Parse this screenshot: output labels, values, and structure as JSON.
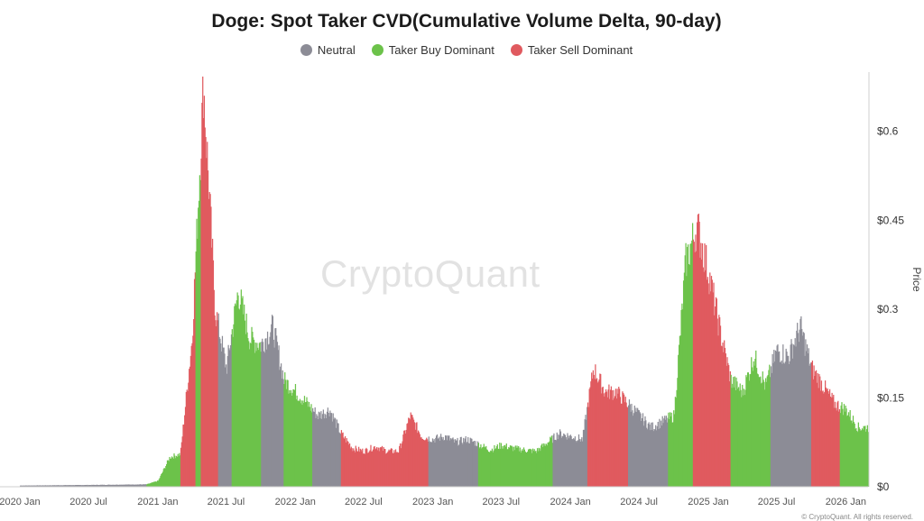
{
  "chart_data": {
    "type": "bar",
    "title": "Doge: Spot Taker CVD(Cumulative Volume Delta, 90-day)",
    "ylabel": "Price",
    "ylim": [
      0,
      0.7
    ],
    "yticks": [
      "$0",
      "$0.15",
      "$0.3",
      "$0.45",
      "$0.6"
    ],
    "ytick_values": [
      0,
      0.15,
      0.3,
      0.45,
      0.6
    ],
    "x_start": "2020-01",
    "x_end": "2026-03",
    "xtick_labels": [
      "2020 Jan",
      "2020 Jul",
      "2021 Jan",
      "2021 Jul",
      "2022 Jan",
      "2022 Jul",
      "2023 Jan",
      "2023 Jul",
      "2024 Jan",
      "2024 Jul",
      "2025 Jan",
      "2025 Jul",
      "2026 Jan"
    ],
    "xtick_dates": [
      "2020-01",
      "2020-07",
      "2021-01",
      "2021-07",
      "2022-01",
      "2022-07",
      "2023-01",
      "2023-07",
      "2024-01",
      "2024-07",
      "2025-01",
      "2025-07",
      "2026-01"
    ],
    "legend": [
      {
        "name": "Neutral",
        "color": "#8c8c96"
      },
      {
        "name": "Taker Buy Dominant",
        "color": "#6cc24a"
      },
      {
        "name": "Taker Sell Dominant",
        "color": "#e05a5f"
      }
    ],
    "legend_position": "top-center",
    "grid": false,
    "colors": {
      "neutral": "#8c8c96",
      "buy": "#6cc24a",
      "sell": "#e05a5f"
    },
    "price_points": [
      [
        "2020-01",
        0.002
      ],
      [
        "2020-07",
        0.003
      ],
      [
        "2020-12",
        0.004
      ],
      [
        "2021-01",
        0.01
      ],
      [
        "2021-02",
        0.05
      ],
      [
        "2021-03",
        0.055
      ],
      [
        "2021-04",
        0.25
      ],
      [
        "2021-05",
        0.68
      ],
      [
        "2021-05-20",
        0.45
      ],
      [
        "2021-06",
        0.3
      ],
      [
        "2021-07",
        0.2
      ],
      [
        "2021-08",
        0.33
      ],
      [
        "2021-09",
        0.25
      ],
      [
        "2021-10",
        0.24
      ],
      [
        "2021-11",
        0.27
      ],
      [
        "2021-12",
        0.18
      ],
      [
        "2022-01",
        0.16
      ],
      [
        "2022-02",
        0.14
      ],
      [
        "2022-03",
        0.12
      ],
      [
        "2022-04",
        0.13
      ],
      [
        "2022-05",
        0.09
      ],
      [
        "2022-06",
        0.065
      ],
      [
        "2022-07",
        0.06
      ],
      [
        "2022-08",
        0.068
      ],
      [
        "2022-09",
        0.06
      ],
      [
        "2022-10",
        0.06
      ],
      [
        "2022-11",
        0.12
      ],
      [
        "2022-12",
        0.085
      ],
      [
        "2023-01",
        0.08
      ],
      [
        "2023-02",
        0.085
      ],
      [
        "2023-03",
        0.075
      ],
      [
        "2023-04",
        0.08
      ],
      [
        "2023-05",
        0.072
      ],
      [
        "2023-06",
        0.062
      ],
      [
        "2023-07",
        0.07
      ],
      [
        "2023-08",
        0.065
      ],
      [
        "2023-09",
        0.062
      ],
      [
        "2023-10",
        0.06
      ],
      [
        "2023-11",
        0.075
      ],
      [
        "2023-12",
        0.09
      ],
      [
        "2024-01",
        0.085
      ],
      [
        "2024-02",
        0.08
      ],
      [
        "2024-03",
        0.2
      ],
      [
        "2024-04",
        0.16
      ],
      [
        "2024-05",
        0.16
      ],
      [
        "2024-06",
        0.14
      ],
      [
        "2024-07",
        0.12
      ],
      [
        "2024-08",
        0.1
      ],
      [
        "2024-09",
        0.11
      ],
      [
        "2024-10",
        0.12
      ],
      [
        "2024-11",
        0.38
      ],
      [
        "2024-12",
        0.44
      ],
      [
        "2025-01",
        0.36
      ],
      [
        "2025-02",
        0.26
      ],
      [
        "2025-03",
        0.18
      ],
      [
        "2025-04",
        0.16
      ],
      [
        "2025-05",
        0.22
      ],
      [
        "2025-06",
        0.17
      ],
      [
        "2025-07",
        0.23
      ],
      [
        "2025-08",
        0.22
      ],
      [
        "2025-09",
        0.27
      ],
      [
        "2025-10",
        0.2
      ],
      [
        "2025-11",
        0.17
      ],
      [
        "2025-12",
        0.14
      ],
      [
        "2026-01",
        0.13
      ],
      [
        "2026-02",
        0.1
      ]
    ],
    "regimes": [
      {
        "start": "2020-01",
        "end": "2020-12",
        "state": "neutral"
      },
      {
        "start": "2020-12",
        "end": "2021-01",
        "state": "buy"
      },
      {
        "start": "2021-01",
        "end": "2021-03-01",
        "state": "buy"
      },
      {
        "start": "2021-03-01",
        "end": "2021-04-10",
        "state": "sell"
      },
      {
        "start": "2021-04-10",
        "end": "2021-04-25",
        "state": "buy"
      },
      {
        "start": "2021-04-25",
        "end": "2021-06-10",
        "state": "sell"
      },
      {
        "start": "2021-06-10",
        "end": "2021-07-15",
        "state": "neutral"
      },
      {
        "start": "2021-07-15",
        "end": "2021-10-01",
        "state": "buy"
      },
      {
        "start": "2021-10-01",
        "end": "2021-12-01",
        "state": "neutral"
      },
      {
        "start": "2021-12-01",
        "end": "2022-02-15",
        "state": "buy"
      },
      {
        "start": "2022-02-15",
        "end": "2022-05-01",
        "state": "neutral"
      },
      {
        "start": "2022-05-01",
        "end": "2022-11-01",
        "state": "sell"
      },
      {
        "start": "2022-11-01",
        "end": "2022-12-20",
        "state": "sell"
      },
      {
        "start": "2022-12-20",
        "end": "2023-05-01",
        "state": "neutral"
      },
      {
        "start": "2023-05-01",
        "end": "2023-07-15",
        "state": "buy"
      },
      {
        "start": "2023-07-15",
        "end": "2023-11-15",
        "state": "buy"
      },
      {
        "start": "2023-11-15",
        "end": "2024-02-15",
        "state": "neutral"
      },
      {
        "start": "2024-02-15",
        "end": "2024-06-01",
        "state": "sell"
      },
      {
        "start": "2024-06-01",
        "end": "2024-09-15",
        "state": "neutral"
      },
      {
        "start": "2024-09-15",
        "end": "2024-11-20",
        "state": "buy"
      },
      {
        "start": "2024-11-20",
        "end": "2025-03-01",
        "state": "sell"
      },
      {
        "start": "2025-03-01",
        "end": "2025-06-15",
        "state": "buy"
      },
      {
        "start": "2025-06-15",
        "end": "2025-10-01",
        "state": "neutral"
      },
      {
        "start": "2025-10-01",
        "end": "2025-12-15",
        "state": "sell"
      },
      {
        "start": "2025-12-15",
        "end": "2026-03",
        "state": "buy"
      }
    ]
  },
  "watermark": "CryptoQuant",
  "copyright": "© CryptoQuant. All rights reserved."
}
